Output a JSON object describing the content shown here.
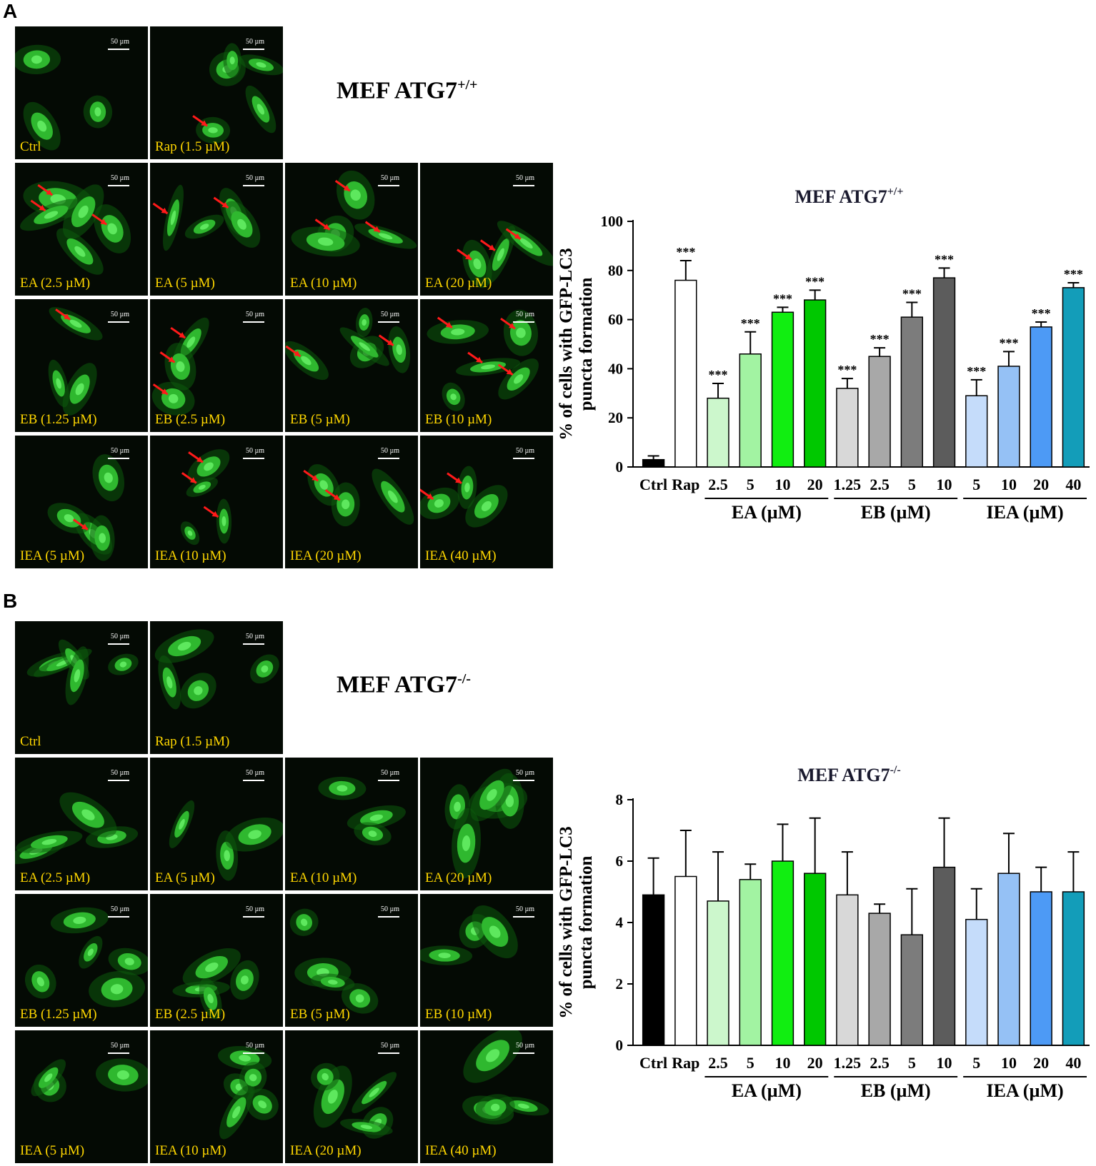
{
  "panelA": {
    "letter": "A",
    "title_main": "MEF ATG7",
    "title_sup": "+/+",
    "scale_label": "50 µm",
    "tiles": [
      {
        "label": "Ctrl",
        "arrows": 0
      },
      {
        "label": "Rap (1.5 µM)",
        "arrows": 1
      },
      {
        "label": "EA (2.5 µM)",
        "arrows": 3
      },
      {
        "label": "EA (5 µM)",
        "arrows": 2
      },
      {
        "label": "EA (10 µM)",
        "arrows": 3
      },
      {
        "label": "EA (20 µM)",
        "arrows": 3
      },
      {
        "label": "EB (1.25 µM)",
        "arrows": 1
      },
      {
        "label": "EB (2.5 µM)",
        "arrows": 3
      },
      {
        "label": "EB (5 µM)",
        "arrows": 2
      },
      {
        "label": "EB (10 µM)",
        "arrows": 4
      },
      {
        "label": "IEA (5 µM)",
        "arrows": 1
      },
      {
        "label": "IEA (10 µM)",
        "arrows": 3
      },
      {
        "label": "IEA (20 µM)",
        "arrows": 2
      },
      {
        "label": "IEA (40 µM)",
        "arrows": 2
      }
    ]
  },
  "panelB": {
    "letter": "B",
    "title_main": "MEF ATG7",
    "title_sup": "-/-",
    "scale_label": "50 µm",
    "tiles": [
      {
        "label": "Ctrl",
        "arrows": 0
      },
      {
        "label": "Rap (1.5 µM)",
        "arrows": 0
      },
      {
        "label": "EA (2.5 µM)",
        "arrows": 0
      },
      {
        "label": "EA (5 µM)",
        "arrows": 0
      },
      {
        "label": "EA (10 µM)",
        "arrows": 0
      },
      {
        "label": "EA (20 µM)",
        "arrows": 0
      },
      {
        "label": "EB (1.25 µM)",
        "arrows": 0
      },
      {
        "label": "EB (2.5 µM)",
        "arrows": 0
      },
      {
        "label": "EB (5 µM)",
        "arrows": 0
      },
      {
        "label": "EB (10 µM)",
        "arrows": 0
      },
      {
        "label": "IEA (5 µM)",
        "arrows": 0
      },
      {
        "label": "IEA (10 µM)",
        "arrows": 0
      },
      {
        "label": "IEA (20 µM)",
        "arrows": 0
      },
      {
        "label": "IEA (40 µM)",
        "arrows": 0
      }
    ]
  },
  "chart_data": [
    {
      "type": "bar",
      "title": "MEF ATG7",
      "title_sup": "+/+",
      "ylabel_line1": "% of cells with GFP-LC3",
      "ylabel_line2": "puncta formation",
      "ylim": [
        0,
        100
      ],
      "yticks": [
        0,
        20,
        40,
        60,
        80,
        100
      ],
      "categories": [
        "Ctrl",
        "Rap",
        "2.5",
        "5",
        "10",
        "20",
        "1.25",
        "2.5",
        "5",
        "10",
        "5",
        "10",
        "20",
        "40"
      ],
      "values": [
        3,
        76,
        28,
        46,
        63,
        68,
        32,
        45,
        61,
        77,
        29,
        41,
        57,
        73
      ],
      "errors": [
        1.5,
        8,
        6,
        9,
        2,
        4,
        4,
        3.5,
        6,
        4,
        6.5,
        6,
        2,
        2
      ],
      "significance": [
        "",
        "***",
        "***",
        "***",
        "***",
        "***",
        "***",
        "***",
        "***",
        "***",
        "***",
        "***",
        "***",
        "***"
      ],
      "colors": [
        "#000000",
        "#ffffff",
        "#ccf7cc",
        "#a2f3a2",
        "#11ee11",
        "#00c800",
        "#d8d8d8",
        "#a8a8a8",
        "#7c7c7c",
        "#5c5c5c",
        "#c5dcfa",
        "#95c1f5",
        "#4d9af5",
        "#139db9"
      ],
      "groups": [
        {
          "label": "EA (µM)",
          "from": 2,
          "to": 5
        },
        {
          "label": "EB (µM)",
          "from": 6,
          "to": 9
        },
        {
          "label": "IEA (µM)",
          "from": 10,
          "to": 13
        }
      ],
      "grid": false
    },
    {
      "type": "bar",
      "title": "MEF ATG7",
      "title_sup": "-/-",
      "ylabel_line1": "% of cells with GFP-LC3",
      "ylabel_line2": "puncta formation",
      "ylim": [
        0,
        8
      ],
      "yticks": [
        0,
        2,
        4,
        6,
        8
      ],
      "categories": [
        "Ctrl",
        "Rap",
        "2.5",
        "5",
        "10",
        "20",
        "1.25",
        "2.5",
        "5",
        "10",
        "5",
        "10",
        "20",
        "40"
      ],
      "values": [
        4.9,
        5.5,
        4.7,
        5.4,
        6.0,
        5.6,
        4.9,
        4.3,
        3.6,
        5.8,
        4.1,
        5.6,
        5.0,
        5.0
      ],
      "errors": [
        1.2,
        1.5,
        1.6,
        0.5,
        1.2,
        1.8,
        1.4,
        0.3,
        1.5,
        1.6,
        1.0,
        1.3,
        0.8,
        1.3
      ],
      "significance": [
        "",
        "",
        "",
        "",
        "",
        "",
        "",
        "",
        "",
        "",
        "",
        "",
        "",
        ""
      ],
      "colors": [
        "#000000",
        "#ffffff",
        "#ccf7cc",
        "#a2f3a2",
        "#11ee11",
        "#00c800",
        "#d8d8d8",
        "#a8a8a8",
        "#7c7c7c",
        "#5c5c5c",
        "#c5dcfa",
        "#95c1f5",
        "#4d9af5",
        "#139db9"
      ],
      "groups": [
        {
          "label": "EA (µM)",
          "from": 2,
          "to": 5
        },
        {
          "label": "EB (µM)",
          "from": 6,
          "to": 9
        },
        {
          "label": "IEA (µM)",
          "from": 10,
          "to": 13
        }
      ],
      "grid": false
    }
  ]
}
